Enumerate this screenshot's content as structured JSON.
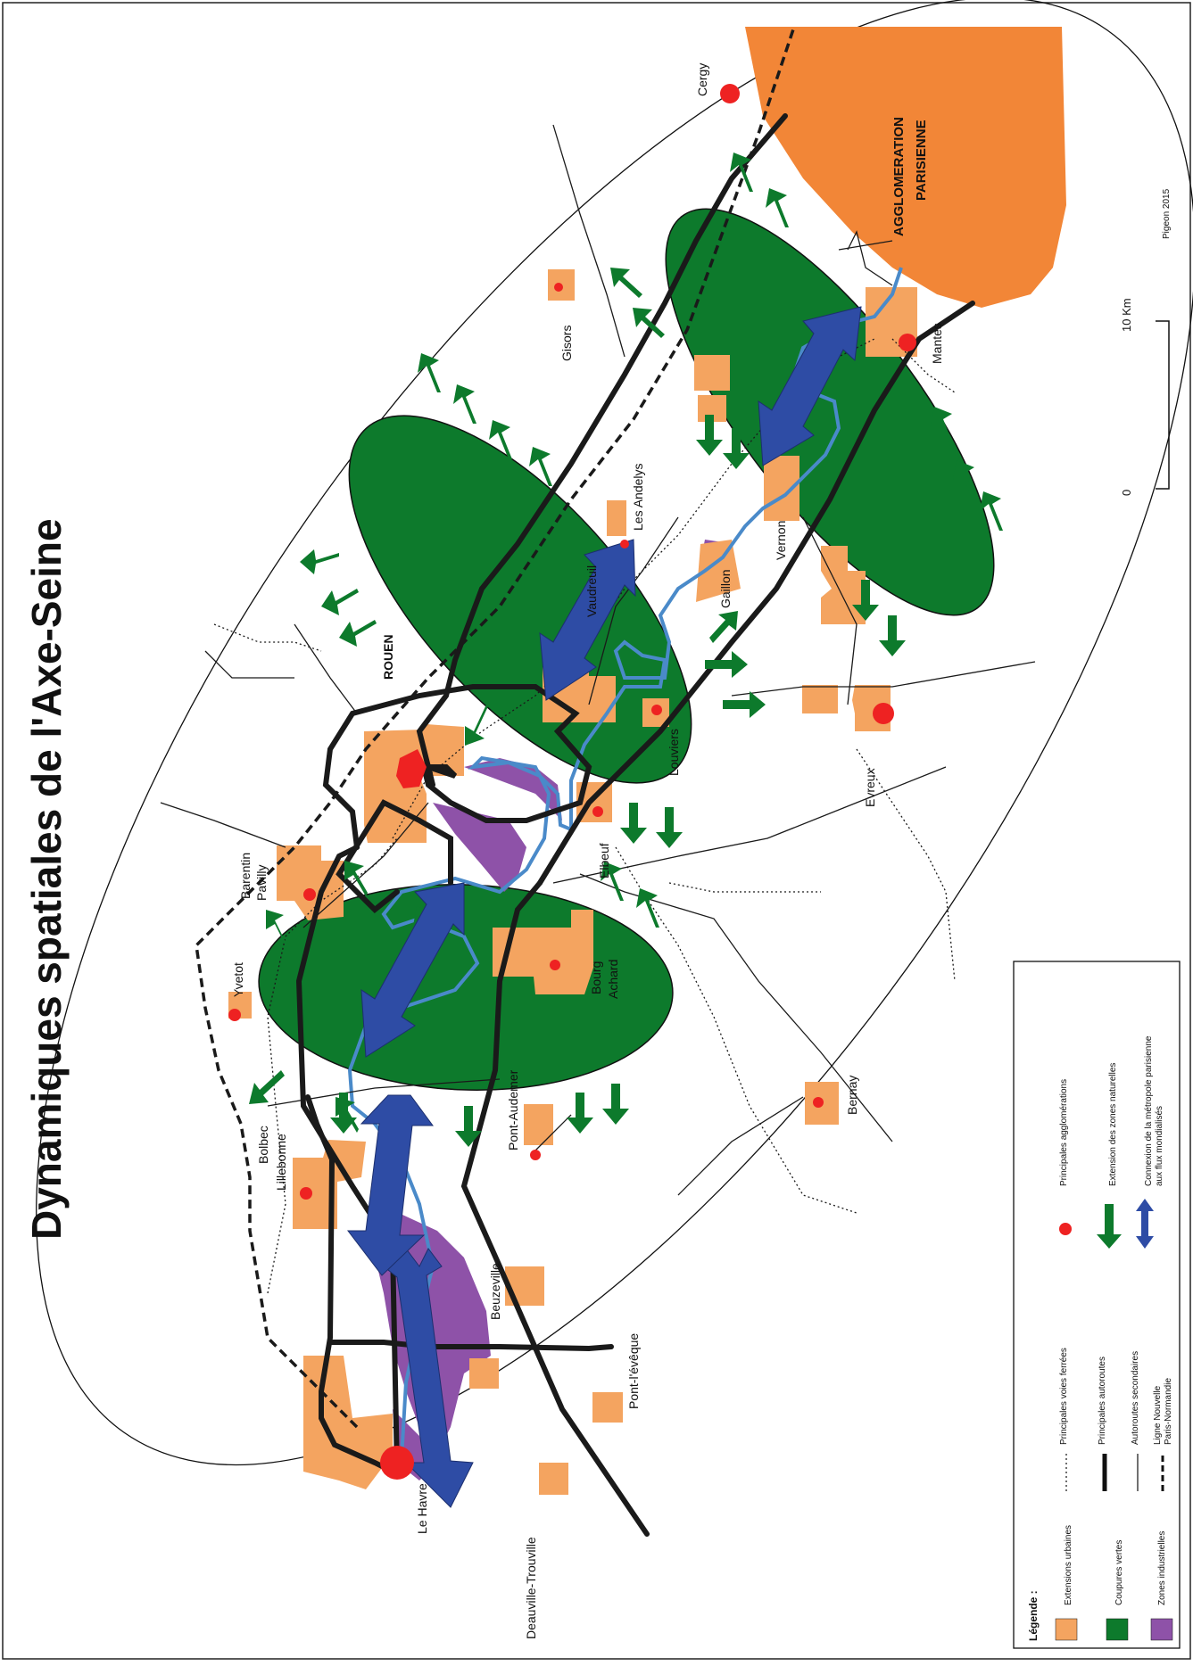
{
  "title": "Dynamiques spatiales de l'Axe-Seine",
  "credit": "Pigeon 2015",
  "scale": {
    "zero": "0",
    "end": "10 Km"
  },
  "colors": {
    "urban": "#f4a460",
    "green": "#0d7a2c",
    "industrial": "#8e52a8",
    "paris": "#f28637",
    "city": "#ee2222",
    "connexion": "#2e4ca5",
    "river": "#4a8ac9",
    "highway": "#1a1a1a"
  },
  "paris_label": [
    "AGGLOMERATION",
    "PARISIENNE"
  ],
  "places": {
    "rouen": "ROUEN",
    "le_havre": "Le Havre",
    "deauville": "Deauville-Trouville",
    "pont_leveque": "Pont-l'évêque",
    "beuzeville": "Beuzeville",
    "pont_audemer": "Pont-Audemer",
    "bolbec": "Bolbec",
    "lillebonne": "Lillebonne",
    "yvetot": "Yvetot",
    "barentin": "Barentin",
    "pavilly": "Pavilly",
    "bourg": "Bourg",
    "achard": "Achard",
    "elbeuf": "Elbeuf",
    "louviers": "Louviers",
    "vaudreuil": "Vaudreuil",
    "les_andelys": "Les Andelys",
    "gaillon": "Gaillon",
    "vernon": "Vernon",
    "gisors": "Gisors",
    "evreux": "Evreux",
    "bernay": "Bernay",
    "mantes": "Mantes",
    "cergy": "Cergy"
  },
  "legend": {
    "heading": "Légende :",
    "areas": [
      {
        "label": "Extensions urbaines",
        "color": "#f4a460"
      },
      {
        "label": "Coupures vertes",
        "color": "#0d7a2c"
      },
      {
        "label": "Zones industrielles",
        "color": "#8e52a8"
      }
    ],
    "symbols": [
      {
        "label": "Principales agglomérations",
        "icon": "red-dot"
      },
      {
        "label": "Extension des zones naturelles",
        "icon": "green-arrow"
      },
      {
        "label1": "Connexion de la métropole parisienne",
        "label2": "aux flux mondialisés",
        "icon": "blue-double-arrow"
      }
    ],
    "lines": [
      {
        "label": "Principales voies ferrées",
        "icon": "dotted-line"
      },
      {
        "label": "Principales autoroutes",
        "icon": "thick-line"
      },
      {
        "label": "Autoroutes secondaires",
        "icon": "thin-line"
      },
      {
        "label1": "Ligne Nouvelle",
        "label2": "Paris-Normandie",
        "icon": "dashed-line"
      }
    ]
  }
}
